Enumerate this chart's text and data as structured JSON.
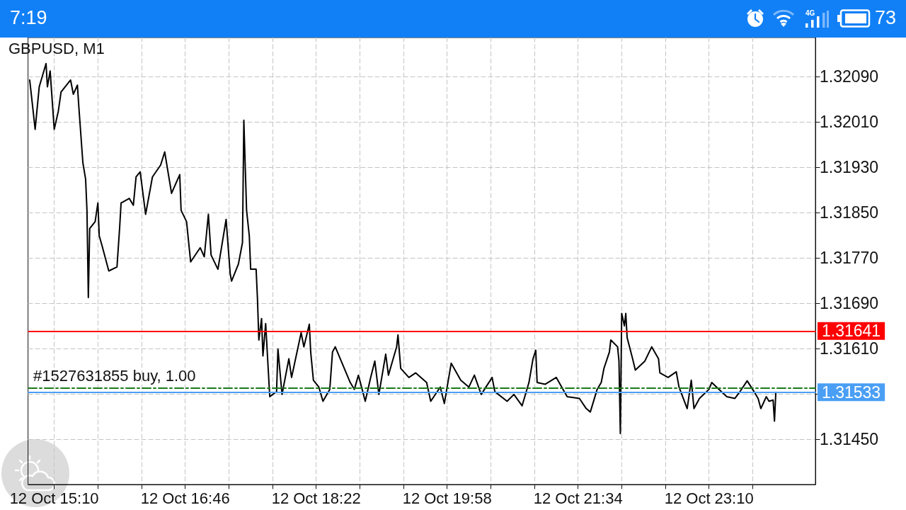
{
  "chart_data": {
    "type": "line",
    "title": "GBPUSD, M1",
    "annotations": [
      "7:19",
      "4G",
      "73"
    ],
    "xlim": [
      "--10-12T14:51",
      "--10-13T00:28"
    ],
    "xticks": [
      {
        "value": "--10-12T15:10",
        "label": "12 Oct 15:10"
      },
      {
        "value": "--10-12T15:42",
        "label": null
      },
      {
        "value": "--10-12T16:14",
        "label": null
      },
      {
        "value": "--10-12T16:46",
        "label": "12 Oct 16:46"
      },
      {
        "value": "--10-12T17:18",
        "label": null
      },
      {
        "value": "--10-12T17:50",
        "label": null
      },
      {
        "value": "--10-12T18:22",
        "label": "12 Oct 18:22"
      },
      {
        "value": "--10-12T18:54",
        "label": null
      },
      {
        "value": "--10-12T19:26",
        "label": null
      },
      {
        "value": "--10-12T19:58",
        "label": "12 Oct 19:58"
      },
      {
        "value": "--10-12T20:30",
        "label": null
      },
      {
        "value": "--10-12T21:02",
        "label": null
      },
      {
        "value": "--10-12T21:34",
        "label": "12 Oct 21:34"
      },
      {
        "value": "--10-12T22:06",
        "label": null
      },
      {
        "value": "--10-12T22:38",
        "label": null
      },
      {
        "value": "--10-12T23:10",
        "label": "12 Oct 23:10"
      },
      {
        "value": "--10-12T23:42",
        "label": null
      }
    ],
    "ylim": [
      1.3137,
      1.32159
    ],
    "yticks": [
      {
        "value": 1.3145,
        "label": "1.31450"
      },
      {
        "value": 1.3153,
        "label": null
      },
      {
        "value": 1.3161,
        "label": "1.31610"
      },
      {
        "value": 1.3169,
        "label": "1.31690"
      },
      {
        "value": 1.3177,
        "label": "1.31770"
      },
      {
        "value": 1.3185,
        "label": "1.31850"
      },
      {
        "value": 1.3193,
        "label": "1.31930"
      },
      {
        "value": 1.3201,
        "label": "1.32010"
      },
      {
        "value": 1.3209,
        "label": "1.32090"
      }
    ],
    "grid": true,
    "marker": "none",
    "line_style": "solid",
    "ref_lines": [
      {
        "axis": "y",
        "value": 1.31641,
        "label": "1.31641",
        "color": "#ff0000",
        "line_style": "solid"
      },
      {
        "axis": "y",
        "value": 1.3154,
        "label": "#1527631855 buy, 1.00",
        "color": "#1a7a1a",
        "line_style": "dashed"
      },
      {
        "axis": "y",
        "value": 1.31533,
        "label": "1.31533",
        "color": "#4a9ff5",
        "line_style": "solid"
      }
    ],
    "series": [
      {
        "color": "#000000",
        "x": [
          "--10-12T14:52",
          "--10-12T14:53",
          "--10-12T14:56",
          "--10-12T14:59",
          "--10-12T15:04",
          "--10-12T15:05",
          "--10-12T15:07",
          "--10-12T15:10",
          "--10-12T15:13",
          "--10-12T15:15",
          "--10-12T15:22",
          "--10-12T15:24",
          "--10-12T15:27",
          "--10-12T15:28",
          "--10-12T15:31",
          "--10-12T15:33",
          "--10-12T15:34",
          "--10-12T15:35",
          "--10-12T15:36",
          "--10-12T15:40",
          "--10-12T15:42",
          "--10-12T15:43",
          "--10-12T15:45",
          "--10-12T15:50",
          "--10-12T15:56",
          "--10-12T15:58",
          "--10-12T15:59",
          "--10-12T16:05",
          "--10-12T16:08",
          "--10-12T16:10",
          "--10-12T16:13",
          "--10-12T16:17",
          "--10-12T16:22",
          "--10-12T16:28",
          "--10-12T16:31",
          "--10-12T16:36",
          "--10-12T16:42",
          "--10-12T16:43",
          "--10-12T16:47",
          "--10-12T16:50",
          "--10-12T16:57",
          "--10-12T17:00",
          "--10-12T17:03",
          "--10-12T17:05",
          "--10-12T17:10",
          "--10-12T17:16",
          "--10-12T17:19",
          "--10-12T17:20",
          "--10-12T17:25",
          "--10-12T17:28",
          "--10-12T17:29",
          "--10-12T17:31",
          "--10-12T17:33",
          "--10-12T17:34",
          "--10-12T17:38",
          "--10-12T17:39",
          "--10-12T17:40",
          "--10-12T17:42",
          "--10-12T17:43",
          "--10-12T17:45",
          "--10-12T17:48",
          "--10-12T17:53",
          "--10-12T17:54",
          "--10-12T17:57",
          "--10-12T18:02",
          "--10-12T18:04",
          "--10-12T18:11",
          "--10-12T18:13",
          "--10-12T18:17",
          "--10-12T18:18",
          "--10-12T18:20",
          "--10-12T18:24",
          "--10-12T18:27",
          "--10-12T18:32",
          "--10-12T18:34",
          "--10-12T18:36",
          "--10-12T18:47",
          "--10-12T18:50",
          "--10-12T18:53",
          "--10-12T18:58",
          "--10-12T19:02",
          "--10-12T19:05",
          "--10-12T19:08",
          "--10-12T19:13",
          "--10-12T19:15",
          "--10-12T19:21",
          "--10-12T19:22",
          "--10-12T19:24",
          "--10-12T19:30",
          "--10-12T19:35",
          "--10-12T19:43",
          "--10-12T19:46",
          "--10-12T19:53",
          "--10-12T19:56",
          "--10-12T20:01",
          "--10-12T20:08",
          "--10-12T20:14",
          "--10-12T20:18",
          "--10-12T20:23",
          "--10-12T20:31",
          "--10-12T20:33",
          "--10-12T20:42",
          "--10-12T20:47",
          "--10-12T20:53",
          "--10-12T20:58",
          "--10-12T21:01",
          "--10-12T21:03",
          "--10-12T21:04",
          "--10-12T21:10",
          "--10-12T21:18",
          "--10-12T21:26",
          "--10-12T21:35",
          "--10-12T21:40",
          "--10-12T21:43",
          "--10-12T21:48",
          "--10-12T21:51",
          "--10-12T21:53",
          "--10-12T21:57",
          "--10-12T21:58",
          "--10-12T22:03",
          "--10-12T22:04",
          "--10-12T22:05",
          "--10-12T22:06",
          "--10-12T22:08",
          "--10-12T22:09",
          "--10-12T22:10",
          "--10-12T22:14",
          "--10-12T22:16",
          "--10-12T22:23",
          "--10-12T22:28",
          "--10-12T22:33",
          "--10-12T22:34",
          "--10-12T22:40",
          "--10-12T22:46",
          "--10-12T22:48",
          "--10-12T22:54",
          "--10-12T22:57",
          "--10-12T22:59",
          "--10-12T23:03",
          "--10-12T23:10",
          "--10-12T23:12",
          "--10-12T23:23",
          "--10-12T23:29",
          "--10-12T23:33",
          "--10-12T23:38",
          "--10-12T23:43",
          "--10-12T23:46",
          "--10-12T23:48",
          "--10-12T23:52",
          "--10-12T23:54",
          "--10-12T23:57",
          "--10-12T23:58",
          "--10-12T23:59"
        ],
        "values": [
          1.32084,
          1.32063,
          1.31997,
          1.32072,
          1.32113,
          1.32072,
          1.321,
          1.31997,
          1.32029,
          1.32063,
          1.32084,
          1.32059,
          1.32075,
          1.32038,
          1.31938,
          1.31909,
          1.31854,
          1.317,
          1.31822,
          1.31834,
          1.31867,
          1.31809,
          1.31792,
          1.31747,
          1.31754,
          1.31825,
          1.31867,
          1.31875,
          1.31863,
          1.31913,
          1.31922,
          1.31847,
          1.31913,
          1.31934,
          1.31957,
          1.31884,
          1.31917,
          1.31854,
          1.31834,
          1.31763,
          1.31788,
          1.31772,
          1.31847,
          1.31775,
          1.3175,
          1.31838,
          1.31742,
          1.31729,
          1.31759,
          1.31797,
          1.32013,
          1.31854,
          1.31809,
          1.3175,
          1.3175,
          1.31697,
          1.31625,
          1.31663,
          1.31597,
          1.31654,
          1.31525,
          1.31534,
          1.31609,
          1.31529,
          1.31592,
          1.31559,
          1.31638,
          1.31613,
          1.31653,
          1.31604,
          1.31554,
          1.31542,
          1.31517,
          1.31538,
          1.31604,
          1.31613,
          1.3155,
          1.31538,
          1.31563,
          1.31517,
          1.31559,
          1.31588,
          1.31529,
          1.316,
          1.31563,
          1.31613,
          1.31634,
          1.31575,
          1.31559,
          1.31567,
          1.3155,
          1.31517,
          1.31542,
          1.31513,
          1.31584,
          1.31554,
          1.31542,
          1.31563,
          1.31529,
          1.31559,
          1.31534,
          1.31517,
          1.31529,
          1.31509,
          1.3155,
          1.31592,
          1.31607,
          1.3155,
          1.31547,
          1.31559,
          1.31525,
          1.31522,
          1.31504,
          1.31498,
          1.31538,
          1.3155,
          1.31575,
          1.31604,
          1.31625,
          1.31613,
          1.31588,
          1.3146,
          1.31672,
          1.3165,
          1.31672,
          1.31629,
          1.31592,
          1.31572,
          1.31588,
          1.31613,
          1.31592,
          1.31567,
          1.31559,
          1.31569,
          1.31542,
          1.31504,
          1.31554,
          1.31504,
          1.31522,
          1.31538,
          1.3155,
          1.31525,
          1.31522,
          1.31535,
          1.31553,
          1.31534,
          1.31522,
          1.31504,
          1.31525,
          1.31517,
          1.31519,
          1.31482,
          1.31533
        ]
      }
    ]
  }
}
